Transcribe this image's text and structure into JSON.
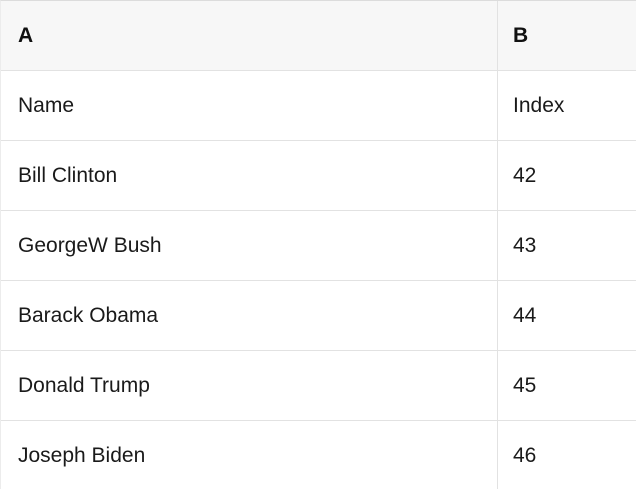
{
  "table": {
    "columns": [
      {
        "label": "A"
      },
      {
        "label": "B"
      }
    ],
    "rows": [
      {
        "a": "Name",
        "b": "Index"
      },
      {
        "a": "Bill Clinton",
        "b": "42"
      },
      {
        "a": "GeorgeW Bush",
        "b": "43"
      },
      {
        "a": "Barack Obama",
        "b": "44"
      },
      {
        "a": "Donald Trump",
        "b": "45"
      },
      {
        "a": "Joseph Biden",
        "b": "46"
      }
    ]
  },
  "colors": {
    "header_bg": "#f7f7f7",
    "grid_border": "#e0e0e0",
    "text": "#1a1a1a"
  }
}
